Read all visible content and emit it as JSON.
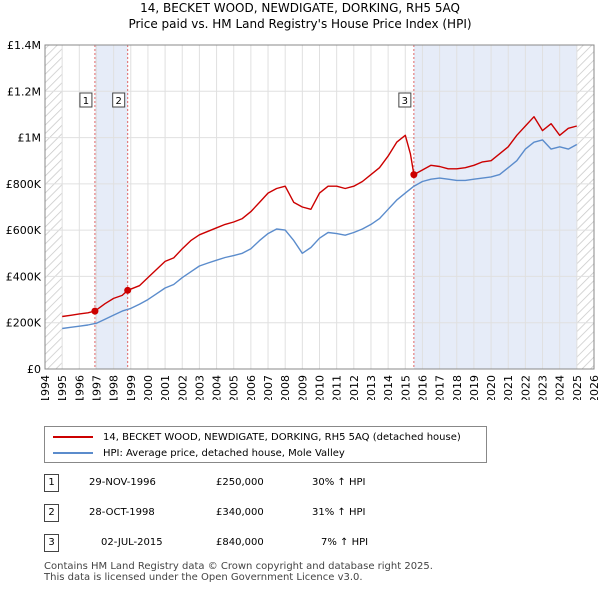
{
  "title": {
    "line1": "14, BECKET WOOD, NEWDIGATE, DORKING, RH5 5AQ",
    "line2": "Price paid vs. HM Land Registry's House Price Index (HPI)"
  },
  "colors": {
    "property_line": "#cc0000",
    "hpi_line": "#5b8ccc",
    "shade": "#e6ecf8",
    "marker_line": "#e06666",
    "grid": "#e0e0e0"
  },
  "chart_data": {
    "type": "line",
    "xlim": [
      1994,
      2026
    ],
    "ylim": [
      0,
      1400000
    ],
    "x_ticks": [
      "1994",
      "1995",
      "1996",
      "1997",
      "1998",
      "1999",
      "2000",
      "2001",
      "2002",
      "2003",
      "2004",
      "2005",
      "2006",
      "2007",
      "2008",
      "2009",
      "2010",
      "2011",
      "2012",
      "2013",
      "2014",
      "2015",
      "2016",
      "2017",
      "2018",
      "2019",
      "2020",
      "2021",
      "2022",
      "2023",
      "2024",
      "2025",
      "2026"
    ],
    "y_ticks": [
      {
        "value": 0,
        "label": "£0"
      },
      {
        "value": 200000,
        "label": "£200K"
      },
      {
        "value": 400000,
        "label": "£400K"
      },
      {
        "value": 600000,
        "label": "£600K"
      },
      {
        "value": 800000,
        "label": "£800K"
      },
      {
        "value": 1000000,
        "label": "£1M"
      },
      {
        "value": 1200000,
        "label": "£1.2M"
      },
      {
        "value": 1400000,
        "label": "£1.4M"
      }
    ],
    "series": [
      {
        "name": "14, BECKET WOOD, NEWDIGATE, DORKING, RH5 5AQ (detached house)",
        "x": [
          1995.0,
          1995.5,
          1996.0,
          1996.5,
          1996.91,
          1997.5,
          1998.0,
          1998.5,
          1998.82,
          1999.5,
          2000.0,
          2000.5,
          2001.0,
          2001.5,
          2002.0,
          2002.5,
          2003.0,
          2003.5,
          2004.0,
          2004.5,
          2005.0,
          2005.5,
          2006.0,
          2006.5,
          2007.0,
          2007.5,
          2008.0,
          2008.5,
          2009.0,
          2009.5,
          2010.0,
          2010.5,
          2011.0,
          2011.5,
          2012.0,
          2012.5,
          2013.0,
          2013.5,
          2014.0,
          2014.5,
          2015.0,
          2015.3,
          2015.5,
          2016.0,
          2016.5,
          2017.0,
          2017.5,
          2018.0,
          2018.5,
          2019.0,
          2019.5,
          2020.0,
          2020.5,
          2021.0,
          2021.5,
          2022.0,
          2022.5,
          2023.0,
          2023.5,
          2024.0,
          2024.5,
          2025.0
        ],
        "y": [
          227000,
          232000,
          238000,
          243000,
          250000,
          282000,
          305000,
          318000,
          340000,
          360000,
          395000,
          430000,
          465000,
          480000,
          520000,
          555000,
          580000,
          595000,
          610000,
          625000,
          635000,
          650000,
          680000,
          720000,
          760000,
          780000,
          790000,
          720000,
          700000,
          690000,
          760000,
          790000,
          790000,
          780000,
          790000,
          810000,
          840000,
          870000,
          920000,
          980000,
          1010000,
          930000,
          840000,
          860000,
          880000,
          875000,
          865000,
          865000,
          870000,
          880000,
          895000,
          900000,
          930000,
          960000,
          1010000,
          1050000,
          1090000,
          1030000,
          1060000,
          1010000,
          1040000,
          1050000
        ]
      },
      {
        "name": "HPI: Average price, detached house, Mole Valley",
        "x": [
          1995.0,
          1995.5,
          1996.0,
          1996.5,
          1997.0,
          1997.5,
          1998.0,
          1998.5,
          1999.0,
          1999.5,
          2000.0,
          2000.5,
          2001.0,
          2001.5,
          2002.0,
          2002.5,
          2003.0,
          2003.5,
          2004.0,
          2004.5,
          2005.0,
          2005.5,
          2006.0,
          2006.5,
          2007.0,
          2007.5,
          2008.0,
          2008.5,
          2009.0,
          2009.5,
          2010.0,
          2010.5,
          2011.0,
          2011.5,
          2012.0,
          2012.5,
          2013.0,
          2013.5,
          2014.0,
          2014.5,
          2015.0,
          2015.5,
          2016.0,
          2016.5,
          2017.0,
          2017.5,
          2018.0,
          2018.5,
          2019.0,
          2019.5,
          2020.0,
          2020.5,
          2021.0,
          2021.5,
          2022.0,
          2022.5,
          2023.0,
          2023.5,
          2024.0,
          2024.5,
          2025.0
        ],
        "y": [
          175000,
          180000,
          185000,
          190000,
          198000,
          215000,
          233000,
          250000,
          262000,
          280000,
          300000,
          325000,
          350000,
          365000,
          395000,
          420000,
          445000,
          458000,
          470000,
          482000,
          490000,
          500000,
          520000,
          555000,
          585000,
          605000,
          600000,
          555000,
          500000,
          525000,
          565000,
          590000,
          585000,
          578000,
          590000,
          605000,
          625000,
          650000,
          690000,
          730000,
          760000,
          790000,
          810000,
          820000,
          825000,
          820000,
          815000,
          815000,
          820000,
          825000,
          830000,
          840000,
          870000,
          900000,
          950000,
          980000,
          990000,
          950000,
          960000,
          950000,
          970000
        ]
      }
    ],
    "sales": [
      {
        "num": "1",
        "x": 1996.91,
        "y": 250000
      },
      {
        "num": "2",
        "x": 1998.82,
        "y": 340000
      },
      {
        "num": "3",
        "x": 2015.5,
        "y": 840000
      }
    ],
    "shaded_ranges": [
      [
        1996.91,
        1998.82
      ],
      [
        2015.5,
        2025.0
      ]
    ],
    "hatched_ranges": [
      [
        1994,
        1995
      ],
      [
        2025,
        2026
      ]
    ]
  },
  "legend": {
    "property": "14, BECKET WOOD, NEWDIGATE, DORKING, RH5 5AQ (detached house)",
    "hpi": "HPI: Average price, detached house, Mole Valley"
  },
  "sales_table": [
    {
      "num": "1",
      "date": "29-NOV-1996",
      "price": "£250,000",
      "hpi": "30% ↑ HPI"
    },
    {
      "num": "2",
      "date": "28-OCT-1998",
      "price": "£340,000",
      "hpi": "31% ↑ HPI"
    },
    {
      "num": "3",
      "date": "02-JUL-2015",
      "price": "£840,000",
      "hpi": "7% ↑ HPI"
    }
  ],
  "footer": {
    "line1": "Contains HM Land Registry data © Crown copyright and database right 2025.",
    "line2": "This data is licensed under the Open Government Licence v3.0."
  }
}
